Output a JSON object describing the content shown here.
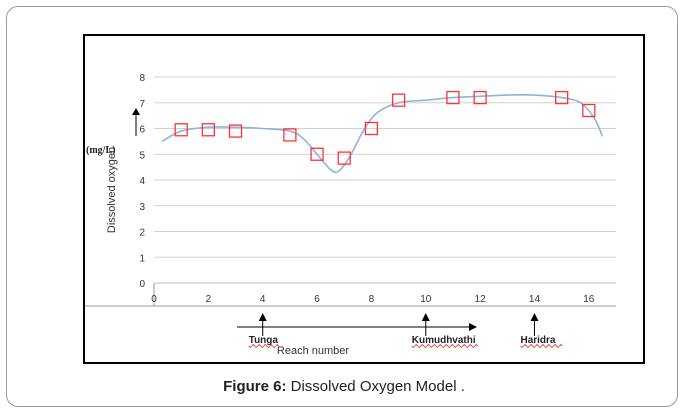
{
  "caption": {
    "label": "Figure 6:",
    "text": " Dissolved Oxygen Model ."
  },
  "chart_data": {
    "type": "scatter",
    "ylabel": "Dissolved oxygen",
    "yunit": "(mg/L)",
    "xlabel": "Reach number",
    "xlim": [
      0,
      17
    ],
    "ylim": [
      0,
      8
    ],
    "xticks": [
      0,
      2,
      4,
      6,
      8,
      10,
      12,
      14,
      16
    ],
    "yticks": [
      0,
      1,
      2,
      3,
      4,
      5,
      6,
      7,
      8
    ],
    "grid": "horizontal",
    "series": [
      {
        "marker": "open-square",
        "color": "#ff3333",
        "x": [
          1,
          2,
          3,
          5,
          6,
          7,
          8,
          9,
          11,
          12,
          15,
          16
        ],
        "y": [
          5.95,
          5.95,
          5.9,
          5.75,
          5.0,
          4.85,
          6.0,
          7.1,
          7.2,
          7.2,
          7.2,
          6.7
        ]
      },
      {
        "line": "smooth",
        "color": "#8fb3d9",
        "x": [
          0.3,
          1,
          2,
          3,
          4,
          5,
          5.5,
          6,
          6.5,
          6.8,
          7.2,
          7.7,
          8.2,
          9,
          10,
          11,
          12,
          13,
          14,
          15,
          15.7,
          16.2,
          16.5
        ],
        "y": [
          5.5,
          5.9,
          6.05,
          6.05,
          6.0,
          5.9,
          5.6,
          5.0,
          4.4,
          4.35,
          4.9,
          5.9,
          6.6,
          7.0,
          7.1,
          7.2,
          7.25,
          7.3,
          7.3,
          7.2,
          7.0,
          6.4,
          5.7
        ]
      }
    ],
    "annotations": [
      {
        "text": "Tunga",
        "x": 4
      },
      {
        "text": "Kumudhvathi",
        "x": 10
      },
      {
        "text": "Haridra",
        "x": 14
      }
    ],
    "axis_line_color": "#000000",
    "gridline_color": "#d0d0d0"
  }
}
